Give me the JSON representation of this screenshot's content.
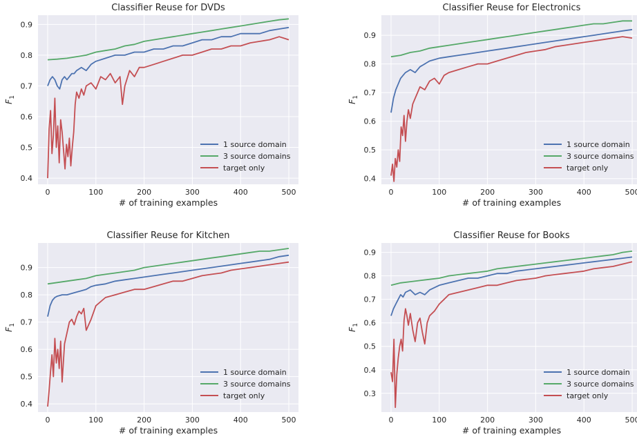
{
  "figure": {
    "colors": {
      "axes_bg": "#EAEAF2",
      "grid": "#FFFFFF",
      "series_1": "#4C72B0",
      "series_3": "#55A868",
      "series_target": "#C44E52"
    }
  },
  "chart_data": [
    {
      "type": "line",
      "title": "Classifier Reuse for DVDs",
      "xlabel": "# of training examples",
      "ylabel": "F",
      "ylabel_sub": "1",
      "xlim": [
        -20,
        520
      ],
      "ylim": [
        0.38,
        0.93
      ],
      "xticks": [
        0,
        100,
        200,
        300,
        400,
        500
      ],
      "yticks": [
        0.4,
        0.5,
        0.6,
        0.7,
        0.8,
        0.9
      ],
      "ytick_labels": [
        "0.4",
        "0.5",
        "0.6",
        "0.7",
        "0.8",
        "0.9"
      ],
      "grid": true,
      "legend": "lower right",
      "series": [
        {
          "name": "1 source domain",
          "x": [
            0,
            5,
            10,
            15,
            20,
            25,
            30,
            35,
            40,
            45,
            50,
            55,
            60,
            70,
            80,
            90,
            100,
            120,
            140,
            160,
            180,
            200,
            220,
            240,
            260,
            280,
            300,
            320,
            340,
            360,
            380,
            400,
            420,
            440,
            460,
            480,
            500
          ],
          "y": [
            0.7,
            0.72,
            0.73,
            0.72,
            0.7,
            0.69,
            0.72,
            0.73,
            0.72,
            0.73,
            0.74,
            0.74,
            0.75,
            0.76,
            0.75,
            0.77,
            0.78,
            0.79,
            0.8,
            0.8,
            0.81,
            0.81,
            0.82,
            0.82,
            0.83,
            0.83,
            0.84,
            0.85,
            0.85,
            0.86,
            0.86,
            0.87,
            0.87,
            0.87,
            0.88,
            0.885,
            0.89
          ]
        },
        {
          "name": "3 source domains",
          "x": [
            0,
            20,
            40,
            60,
            80,
            100,
            120,
            140,
            160,
            180,
            200,
            220,
            240,
            260,
            280,
            300,
            320,
            340,
            360,
            380,
            400,
            420,
            440,
            460,
            480,
            500
          ],
          "y": [
            0.785,
            0.787,
            0.79,
            0.795,
            0.8,
            0.81,
            0.815,
            0.82,
            0.83,
            0.835,
            0.845,
            0.85,
            0.855,
            0.86,
            0.865,
            0.87,
            0.875,
            0.88,
            0.885,
            0.89,
            0.895,
            0.9,
            0.905,
            0.91,
            0.915,
            0.918
          ]
        },
        {
          "name": "target only",
          "x": [
            0,
            3,
            6,
            9,
            12,
            15,
            18,
            21,
            24,
            27,
            30,
            33,
            36,
            39,
            42,
            45,
            48,
            51,
            54,
            57,
            60,
            65,
            70,
            75,
            80,
            90,
            100,
            110,
            120,
            130,
            140,
            150,
            155,
            160,
            170,
            180,
            190,
            200,
            220,
            240,
            260,
            280,
            300,
            320,
            340,
            360,
            380,
            400,
            420,
            440,
            460,
            480,
            490,
            500
          ],
          "y": [
            0.4,
            0.56,
            0.62,
            0.48,
            0.54,
            0.66,
            0.5,
            0.57,
            0.45,
            0.59,
            0.55,
            0.49,
            0.43,
            0.51,
            0.47,
            0.53,
            0.44,
            0.5,
            0.55,
            0.64,
            0.68,
            0.66,
            0.69,
            0.67,
            0.7,
            0.71,
            0.69,
            0.73,
            0.72,
            0.74,
            0.71,
            0.73,
            0.64,
            0.7,
            0.75,
            0.73,
            0.76,
            0.76,
            0.77,
            0.78,
            0.79,
            0.8,
            0.8,
            0.81,
            0.82,
            0.82,
            0.83,
            0.83,
            0.84,
            0.845,
            0.85,
            0.86,
            0.855,
            0.85
          ]
        }
      ]
    },
    {
      "type": "line",
      "title": "Classifier Reuse for Electronics",
      "xlabel": "# of training examples",
      "ylabel": "F",
      "ylabel_sub": "1",
      "xlim": [
        -20,
        520
      ],
      "ylim": [
        0.38,
        0.97
      ],
      "xticks": [
        0,
        100,
        200,
        300,
        400,
        500
      ],
      "yticks": [
        0.4,
        0.5,
        0.6,
        0.7,
        0.8,
        0.9
      ],
      "ytick_labels": [
        "0.4",
        "0.5",
        "0.6",
        "0.7",
        "0.8",
        "0.9"
      ],
      "grid": true,
      "legend": "lower right",
      "series": [
        {
          "name": "1 source domain",
          "x": [
            0,
            5,
            10,
            15,
            20,
            25,
            30,
            40,
            50,
            60,
            70,
            80,
            90,
            100,
            120,
            140,
            160,
            180,
            200,
            220,
            240,
            260,
            280,
            300,
            320,
            340,
            360,
            380,
            400,
            420,
            440,
            460,
            480,
            500
          ],
          "y": [
            0.63,
            0.68,
            0.71,
            0.73,
            0.75,
            0.76,
            0.77,
            0.78,
            0.77,
            0.79,
            0.8,
            0.81,
            0.815,
            0.82,
            0.825,
            0.83,
            0.835,
            0.84,
            0.845,
            0.85,
            0.855,
            0.86,
            0.865,
            0.87,
            0.875,
            0.88,
            0.885,
            0.89,
            0.895,
            0.9,
            0.905,
            0.91,
            0.915,
            0.92
          ]
        },
        {
          "name": "3 source domains",
          "x": [
            0,
            20,
            40,
            60,
            80,
            100,
            120,
            140,
            160,
            180,
            200,
            220,
            240,
            260,
            280,
            300,
            320,
            340,
            360,
            380,
            400,
            420,
            440,
            460,
            480,
            500
          ],
          "y": [
            0.825,
            0.83,
            0.84,
            0.845,
            0.855,
            0.86,
            0.865,
            0.87,
            0.875,
            0.88,
            0.885,
            0.89,
            0.895,
            0.9,
            0.905,
            0.91,
            0.915,
            0.92,
            0.925,
            0.93,
            0.935,
            0.94,
            0.94,
            0.945,
            0.95,
            0.95
          ]
        },
        {
          "name": "target only",
          "x": [
            0,
            3,
            6,
            9,
            12,
            15,
            18,
            21,
            24,
            27,
            30,
            33,
            36,
            40,
            45,
            50,
            55,
            60,
            70,
            80,
            90,
            100,
            110,
            120,
            140,
            160,
            180,
            200,
            220,
            240,
            260,
            280,
            300,
            320,
            340,
            360,
            380,
            400,
            420,
            440,
            460,
            480,
            500
          ],
          "y": [
            0.41,
            0.45,
            0.39,
            0.47,
            0.44,
            0.5,
            0.46,
            0.58,
            0.55,
            0.62,
            0.53,
            0.6,
            0.64,
            0.61,
            0.66,
            0.68,
            0.7,
            0.72,
            0.71,
            0.74,
            0.75,
            0.73,
            0.76,
            0.77,
            0.78,
            0.79,
            0.8,
            0.8,
            0.81,
            0.82,
            0.83,
            0.84,
            0.845,
            0.85,
            0.86,
            0.865,
            0.87,
            0.875,
            0.88,
            0.885,
            0.89,
            0.895,
            0.89
          ]
        }
      ]
    },
    {
      "type": "line",
      "title": "Classifier Reuse for Kitchen",
      "xlabel": "# of training examples",
      "ylabel": "F",
      "ylabel_sub": "1",
      "xlim": [
        -20,
        520
      ],
      "ylim": [
        0.37,
        0.99
      ],
      "xticks": [
        0,
        100,
        200,
        300,
        400,
        500
      ],
      "yticks": [
        0.4,
        0.5,
        0.6,
        0.7,
        0.8,
        0.9
      ],
      "ytick_labels": [
        "0.4",
        "0.5",
        "0.6",
        "0.7",
        "0.8",
        "0.9"
      ],
      "grid": true,
      "legend": "lower right",
      "series": [
        {
          "name": "1 source domain",
          "x": [
            0,
            5,
            10,
            15,
            20,
            30,
            40,
            50,
            60,
            70,
            80,
            90,
            100,
            120,
            140,
            160,
            180,
            200,
            220,
            240,
            260,
            280,
            300,
            320,
            340,
            360,
            380,
            400,
            420,
            440,
            460,
            480,
            500
          ],
          "y": [
            0.72,
            0.76,
            0.78,
            0.79,
            0.795,
            0.8,
            0.8,
            0.805,
            0.81,
            0.815,
            0.82,
            0.83,
            0.835,
            0.84,
            0.85,
            0.855,
            0.86,
            0.865,
            0.87,
            0.875,
            0.88,
            0.885,
            0.89,
            0.895,
            0.9,
            0.905,
            0.91,
            0.915,
            0.92,
            0.925,
            0.93,
            0.94,
            0.945
          ]
        },
        {
          "name": "3 source domains",
          "x": [
            0,
            20,
            40,
            60,
            80,
            100,
            120,
            140,
            160,
            180,
            200,
            220,
            240,
            260,
            280,
            300,
            320,
            340,
            360,
            380,
            400,
            420,
            440,
            460,
            480,
            500
          ],
          "y": [
            0.84,
            0.845,
            0.85,
            0.855,
            0.86,
            0.87,
            0.875,
            0.88,
            0.885,
            0.89,
            0.9,
            0.905,
            0.91,
            0.915,
            0.92,
            0.925,
            0.93,
            0.935,
            0.94,
            0.945,
            0.95,
            0.955,
            0.96,
            0.96,
            0.965,
            0.97
          ]
        },
        {
          "name": "target only",
          "x": [
            0,
            3,
            6,
            9,
            12,
            15,
            18,
            21,
            24,
            27,
            30,
            35,
            40,
            45,
            50,
            55,
            60,
            65,
            70,
            75,
            80,
            90,
            100,
            120,
            140,
            160,
            180,
            200,
            220,
            240,
            260,
            280,
            300,
            320,
            340,
            360,
            380,
            400,
            420,
            440,
            460,
            480,
            500
          ],
          "y": [
            0.39,
            0.45,
            0.52,
            0.58,
            0.5,
            0.64,
            0.55,
            0.6,
            0.53,
            0.63,
            0.48,
            0.62,
            0.66,
            0.7,
            0.71,
            0.69,
            0.72,
            0.74,
            0.73,
            0.75,
            0.67,
            0.71,
            0.76,
            0.79,
            0.8,
            0.81,
            0.82,
            0.82,
            0.83,
            0.84,
            0.85,
            0.85,
            0.86,
            0.87,
            0.875,
            0.88,
            0.89,
            0.895,
            0.9,
            0.905,
            0.91,
            0.915,
            0.92
          ]
        }
      ]
    },
    {
      "type": "line",
      "title": "Classifier Reuse for Books",
      "xlabel": "# of training examples",
      "ylabel": "F",
      "ylabel_sub": "1",
      "xlim": [
        -20,
        520
      ],
      "ylim": [
        0.22,
        0.94
      ],
      "xticks": [
        0,
        100,
        200,
        300,
        400,
        500
      ],
      "yticks": [
        0.3,
        0.4,
        0.5,
        0.6,
        0.7,
        0.8,
        0.9
      ],
      "ytick_labels": [
        "0.3",
        "0.4",
        "0.5",
        "0.6",
        "0.7",
        "0.8",
        "0.9"
      ],
      "grid": true,
      "legend": "lower right",
      "series": [
        {
          "name": "1 source domain",
          "x": [
            0,
            5,
            10,
            15,
            20,
            25,
            30,
            40,
            50,
            60,
            70,
            80,
            90,
            100,
            120,
            140,
            160,
            180,
            200,
            220,
            240,
            260,
            280,
            300,
            320,
            340,
            360,
            380,
            400,
            420,
            440,
            460,
            480,
            500
          ],
          "y": [
            0.63,
            0.66,
            0.68,
            0.7,
            0.72,
            0.71,
            0.73,
            0.74,
            0.72,
            0.73,
            0.72,
            0.74,
            0.75,
            0.76,
            0.77,
            0.78,
            0.79,
            0.79,
            0.8,
            0.81,
            0.81,
            0.82,
            0.825,
            0.83,
            0.835,
            0.84,
            0.845,
            0.85,
            0.855,
            0.86,
            0.865,
            0.87,
            0.875,
            0.88
          ]
        },
        {
          "name": "3 source domains",
          "x": [
            0,
            20,
            40,
            60,
            80,
            100,
            120,
            140,
            160,
            180,
            200,
            220,
            240,
            260,
            280,
            300,
            320,
            340,
            360,
            380,
            400,
            420,
            440,
            460,
            480,
            500
          ],
          "y": [
            0.76,
            0.77,
            0.775,
            0.78,
            0.785,
            0.79,
            0.8,
            0.805,
            0.81,
            0.815,
            0.82,
            0.83,
            0.835,
            0.84,
            0.845,
            0.85,
            0.855,
            0.86,
            0.865,
            0.87,
            0.875,
            0.88,
            0.885,
            0.89,
            0.9,
            0.905
          ]
        },
        {
          "name": "target only",
          "x": [
            0,
            3,
            6,
            9,
            12,
            15,
            18,
            21,
            24,
            27,
            30,
            33,
            36,
            40,
            45,
            50,
            55,
            60,
            65,
            70,
            75,
            80,
            90,
            100,
            110,
            120,
            140,
            160,
            180,
            200,
            220,
            240,
            260,
            280,
            300,
            320,
            340,
            360,
            380,
            400,
            420,
            440,
            460,
            480,
            500
          ],
          "y": [
            0.39,
            0.35,
            0.53,
            0.24,
            0.38,
            0.45,
            0.5,
            0.53,
            0.48,
            0.61,
            0.66,
            0.63,
            0.59,
            0.64,
            0.57,
            0.52,
            0.6,
            0.62,
            0.56,
            0.51,
            0.6,
            0.63,
            0.65,
            0.68,
            0.7,
            0.72,
            0.73,
            0.74,
            0.75,
            0.76,
            0.76,
            0.77,
            0.78,
            0.785,
            0.79,
            0.8,
            0.805,
            0.81,
            0.815,
            0.82,
            0.83,
            0.835,
            0.84,
            0.85,
            0.86
          ]
        }
      ]
    }
  ]
}
